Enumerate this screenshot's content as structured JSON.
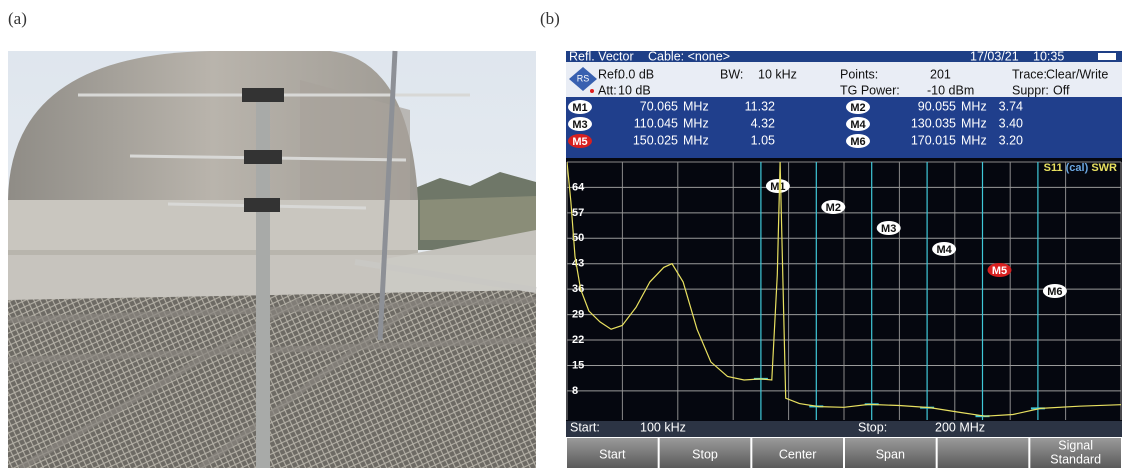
{
  "labels": {
    "a": "(a)",
    "b": "(b)"
  },
  "screen": {
    "status": {
      "mode": "Refl. Vector",
      "cable": "Cable: <none>",
      "date": "17/03/21",
      "time": "10:35"
    },
    "settings": [
      {
        "label": "Ref:",
        "value": "0.0 dB"
      },
      {
        "label": "BW:",
        "value": "10 kHz"
      },
      {
        "label": "Points:",
        "value": "201"
      },
      {
        "label": "Trace:",
        "value": "Clear/Write"
      },
      {
        "label": "Att:",
        "value": "10 dB"
      },
      {
        "label": "TG Power:",
        "value": "-10 dBm"
      },
      {
        "label": "Suppr:",
        "value": "Off"
      }
    ],
    "markers": [
      {
        "name": "M1",
        "freq": 70.065,
        "unit": "MHz",
        "value": 11.32
      },
      {
        "name": "M2",
        "freq": 90.055,
        "unit": "MHz",
        "value": 3.74
      },
      {
        "name": "M3",
        "freq": 110.045,
        "unit": "MHz",
        "value": 4.32
      },
      {
        "name": "M4",
        "freq": 130.035,
        "unit": "MHz",
        "value": 3.4,
        "value_label": "3.40"
      },
      {
        "name": "M5",
        "freq": 150.025,
        "unit": "MHz",
        "value": 1.05
      },
      {
        "name": "M6",
        "freq": 170.015,
        "unit": "MHz",
        "value": 3.2,
        "value_label": "3.20"
      }
    ],
    "plot": {
      "trace_label": [
        "S11",
        "(cal)",
        "SWR"
      ],
      "xlim": [
        0.1,
        200
      ],
      "ylim": [
        0,
        71
      ],
      "yticks": [
        64,
        57,
        50,
        43,
        36,
        29,
        22,
        15,
        8
      ],
      "trace_color": "#e8e060",
      "x": [
        0.1,
        1.5,
        3,
        5,
        8,
        12,
        16,
        20,
        25,
        30,
        35,
        38,
        42,
        47,
        52,
        58,
        64,
        70,
        74,
        76,
        77,
        79,
        84,
        91,
        100,
        109,
        120,
        131,
        141,
        151,
        161,
        171,
        185,
        200
      ],
      "values": [
        71,
        60,
        45,
        36,
        30,
        27,
        25,
        26,
        31,
        38,
        42,
        43,
        38,
        25,
        16,
        12,
        11,
        11.3,
        11,
        40,
        71,
        6,
        4.5,
        3.7,
        3.5,
        4.3,
        4,
        3.4,
        2.2,
        1.05,
        1.5,
        3.2,
        3.8,
        4.2
      ]
    },
    "footer": {
      "start_label": "Start:",
      "start": "100 kHz",
      "stop_label": "Stop:",
      "stop": "200 MHz"
    },
    "softkeys": [
      [
        "Start"
      ],
      [
        "Stop"
      ],
      [
        "Center"
      ],
      [
        "Span"
      ],
      [
        "Signal",
        "Standard"
      ]
    ]
  }
}
